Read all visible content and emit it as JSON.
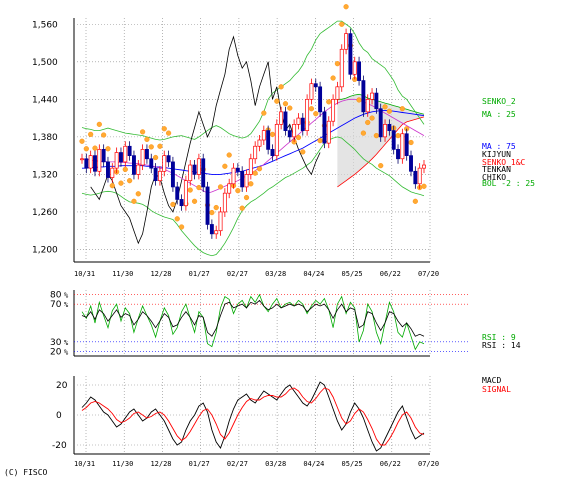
{
  "copyright": "(C) FISCO",
  "chart_data": [
    {
      "type": "candlestick",
      "panel": "price",
      "ylim": [
        1180,
        1570
      ],
      "yticks": [
        "1,200",
        "1,260",
        "1,320",
        "1,380",
        "1,440",
        "1,500",
        "1,560"
      ],
      "ytick_values": [
        1200,
        1260,
        1320,
        1380,
        1440,
        1500,
        1560
      ],
      "x_labels": [
        "10/31",
        "11/30",
        "12/28",
        "01/27",
        "02/27",
        "03/28",
        "04/24",
        "05/25",
        "06/22",
        "07/20"
      ],
      "legend": [
        {
          "text": "SENKO_2",
          "color": "#00aa00"
        },
        {
          "text": "MA : 25",
          "color": "#00aa00"
        },
        {
          "text": "MA : 75",
          "color": "#0000ff"
        },
        {
          "text": "KIJYUN",
          "color": "#000000"
        },
        {
          "text": "SENKO_1&C",
          "color": "#ff0000"
        },
        {
          "text": "TENKAN",
          "color": "#000000"
        },
        {
          "text": "CHIKO",
          "color": "#000000"
        },
        {
          "text": "BOL -2 : 25",
          "color": "#00aa00"
        }
      ],
      "close": [
        1345,
        1330,
        1350,
        1325,
        1360,
        1340,
        1315,
        1330,
        1355,
        1340,
        1365,
        1350,
        1320,
        1335,
        1360,
        1345,
        1330,
        1310,
        1325,
        1350,
        1340,
        1300,
        1280,
        1270,
        1310,
        1335,
        1320,
        1345,
        1300,
        1240,
        1225,
        1230,
        1260,
        1290,
        1305,
        1330,
        1325,
        1300,
        1320,
        1345,
        1365,
        1375,
        1390,
        1360,
        1350,
        1400,
        1420,
        1390,
        1380,
        1400,
        1410,
        1390,
        1440,
        1465,
        1460,
        1420,
        1370,
        1405,
        1440,
        1460,
        1520,
        1545,
        1480,
        1500,
        1470,
        1420,
        1440,
        1450,
        1425,
        1380,
        1400,
        1390,
        1360,
        1345,
        1385,
        1350,
        1325,
        1305,
        1330,
        1335
      ],
      "bollinger_upper": [
        1395,
        1393,
        1392,
        1390,
        1390,
        1392,
        1394,
        1392,
        1390,
        1388,
        1386,
        1385,
        1384,
        1383,
        1382,
        1380,
        1378,
        1376,
        1375,
        1376,
        1378,
        1380,
        1381,
        1382,
        1380,
        1378,
        1376,
        1380,
        1385,
        1390,
        1395,
        1398,
        1395,
        1390,
        1385,
        1382,
        1380,
        1378,
        1380,
        1385,
        1395,
        1405,
        1420,
        1440,
        1450,
        1455,
        1460,
        1465,
        1470,
        1478,
        1485,
        1495,
        1510,
        1520,
        1535,
        1545,
        1550,
        1555,
        1560,
        1565,
        1565,
        1560,
        1555,
        1545,
        1530,
        1520,
        1515,
        1505,
        1500,
        1495,
        1490,
        1480,
        1470,
        1455,
        1445,
        1440,
        1430,
        1420,
        1410,
        1400
      ],
      "bollinger_lower": [
        1290,
        1288,
        1287,
        1288,
        1290,
        1292,
        1293,
        1292,
        1290,
        1285,
        1280,
        1276,
        1275,
        1274,
        1272,
        1268,
        1262,
        1258,
        1255,
        1252,
        1250,
        1248,
        1240,
        1230,
        1222,
        1214,
        1206,
        1200,
        1195,
        1192,
        1190,
        1192,
        1200,
        1210,
        1222,
        1235,
        1250,
        1262,
        1270,
        1276,
        1280,
        1285,
        1290,
        1296,
        1300,
        1305,
        1310,
        1315,
        1318,
        1322,
        1326,
        1330,
        1335,
        1340,
        1350,
        1360,
        1370,
        1375,
        1378,
        1380,
        1378,
        1372,
        1366,
        1360,
        1352,
        1345,
        1340,
        1336,
        1330,
        1326,
        1322,
        1318,
        1312,
        1306,
        1300,
        1296,
        1292,
        1290,
        1288,
        1286
      ],
      "ma25": [
        1345,
        1344,
        1343,
        1342,
        1341,
        1341,
        1340,
        1340,
        1340,
        1339,
        1339,
        1338,
        1338,
        1337,
        1336,
        1335,
        1334,
        1332,
        1330,
        1328,
        1325,
        1322,
        1318,
        1314,
        1310,
        1306,
        1302,
        1298,
        1294,
        1290,
        1292,
        1295,
        1298,
        1301,
        1304,
        1307,
        1310,
        1314,
        1318,
        1322,
        1326,
        1331,
        1336,
        1342,
        1348,
        1354,
        1360,
        1366,
        1372,
        1378,
        1384,
        1390,
        1396,
        1402,
        1408,
        1414,
        1420,
        1425,
        1430,
        1434,
        1437,
        1439,
        1440,
        1440,
        1438,
        1436,
        1433,
        1430,
        1426,
        1422,
        1418,
        1414,
        1410,
        1406,
        1402,
        1398,
        1394,
        1390,
        1386,
        1382
      ],
      "ma75": [
        1330,
        1330,
        1331,
        1331,
        1332,
        1332,
        1333,
        1333,
        1333,
        1334,
        1334,
        1334,
        1334,
        1334,
        1334,
        1333,
        1333,
        1332,
        1332,
        1331,
        1330,
        1329,
        1328,
        1327,
        1326,
        1325,
        1324,
        1323,
        1322,
        1321,
        1320,
        1320,
        1320,
        1321,
        1322,
        1323,
        1324,
        1325,
        1327,
        1329,
        1331,
        1333,
        1335,
        1338,
        1341,
        1344,
        1347,
        1350,
        1353,
        1356,
        1359,
        1362,
        1366,
        1370,
        1374,
        1378,
        1382,
        1386,
        1390,
        1394,
        1398,
        1402,
        1406,
        1410,
        1413,
        1416,
        1418,
        1420,
        1421,
        1422,
        1422,
        1422,
        1421,
        1420,
        1419,
        1418,
        1417,
        1416,
        1415,
        1414
      ],
      "chiko": [
        1300,
        1290,
        1280,
        1300,
        1320,
        1310,
        1290,
        1270,
        1260,
        1250,
        1230,
        1210,
        1225,
        1260,
        1300,
        1320,
        1315,
        1290,
        1270,
        1260,
        1280,
        1310,
        1340,
        1370,
        1395,
        1420,
        1400,
        1380,
        1395,
        1430,
        1455,
        1480,
        1520,
        1540,
        1510,
        1490,
        1500,
        1470,
        1430,
        1460,
        1480,
        1500,
        1440,
        1460,
        1420,
        1390,
        1400,
        1380,
        1360,
        1345,
        1330,
        1320,
        1340,
        1355
      ],
      "kumo_top": [
        1440,
        1440,
        1442,
        1445,
        1447,
        1448,
        1446,
        1442,
        1440,
        1438,
        1436,
        1434,
        1432,
        1430,
        1428,
        1426,
        1424,
        1422,
        1420,
        1418,
        1416
      ],
      "kumo_bottom": [
        1300,
        1305,
        1310,
        1315,
        1320,
        1326,
        1332,
        1338,
        1345,
        1352,
        1360,
        1368,
        1376,
        1384,
        1392,
        1400,
        1404,
        1406,
        1408,
        1410,
        1412
      ]
    },
    {
      "type": "line",
      "panel": "rsi",
      "ylim": [
        15,
        85
      ],
      "yticks": [
        "80",
        "70",
        "30",
        "20"
      ],
      "ytick_values": [
        80,
        70,
        30,
        20
      ],
      "series": [
        {
          "name": "RSI : 9",
          "color": "#00aa00",
          "values": [
            62,
            55,
            68,
            50,
            72,
            58,
            45,
            63,
            70,
            52,
            66,
            60,
            40,
            55,
            68,
            58,
            48,
            35,
            52,
            66,
            58,
            38,
            45,
            62,
            70,
            55,
            40,
            62,
            56,
            28,
            25,
            40,
            66,
            78,
            75,
            60,
            70,
            74,
            66,
            78,
            72,
            80,
            68,
            62,
            70,
            76,
            66,
            70,
            72,
            68,
            74,
            70,
            60,
            68,
            74,
            70,
            76,
            64,
            45,
            70,
            78,
            60,
            72,
            66,
            30,
            42,
            70,
            62,
            40,
            28,
            50,
            72,
            62,
            40,
            35,
            50,
            36,
            22,
            30,
            28
          ]
        },
        {
          "name": "RSI : 14",
          "color": "#000000",
          "values": [
            58,
            56,
            62,
            54,
            64,
            60,
            52,
            58,
            64,
            56,
            60,
            58,
            48,
            54,
            62,
            58,
            52,
            45,
            52,
            60,
            56,
            46,
            48,
            56,
            62,
            56,
            48,
            58,
            56,
            40,
            36,
            44,
            58,
            70,
            72,
            66,
            68,
            70,
            66,
            72,
            70,
            74,
            68,
            64,
            66,
            70,
            66,
            68,
            70,
            68,
            70,
            68,
            62,
            66,
            70,
            68,
            70,
            64,
            55,
            64,
            70,
            62,
            66,
            64,
            45,
            48,
            62,
            60,
            50,
            42,
            50,
            62,
            60,
            52,
            46,
            50,
            44,
            36,
            38,
            36
          ]
        }
      ]
    },
    {
      "type": "line",
      "panel": "macd",
      "ylim": [
        -26,
        26
      ],
      "yticks": [
        "20",
        "0",
        "-20"
      ],
      "ytick_values": [
        20,
        0,
        -20
      ],
      "series": [
        {
          "name": "MACD",
          "color": "#000000",
          "values": [
            5,
            8,
            12,
            10,
            6,
            2,
            0,
            -4,
            -8,
            -6,
            -2,
            2,
            4,
            0,
            -4,
            -2,
            2,
            4,
            0,
            -4,
            -10,
            -16,
            -20,
            -18,
            -10,
            -4,
            0,
            6,
            8,
            2,
            -10,
            -18,
            -22,
            -14,
            -4,
            4,
            10,
            12,
            14,
            10,
            8,
            12,
            16,
            14,
            12,
            10,
            14,
            18,
            20,
            16,
            12,
            8,
            6,
            10,
            16,
            22,
            20,
            12,
            4,
            -4,
            -10,
            -6,
            2,
            8,
            4,
            -2,
            -10,
            -18,
            -24,
            -22,
            -16,
            -10,
            -4,
            2,
            6,
            -2,
            -10,
            -16,
            -14,
            -12
          ]
        },
        {
          "name": "SIGNAL",
          "color": "#ff0000",
          "values": [
            3,
            5,
            8,
            9,
            8,
            6,
            4,
            1,
            -3,
            -5,
            -4,
            -2,
            1,
            2,
            0,
            -2,
            -1,
            1,
            2,
            0,
            -4,
            -9,
            -14,
            -17,
            -15,
            -11,
            -6,
            -1,
            3,
            4,
            0,
            -6,
            -13,
            -16,
            -12,
            -6,
            0,
            5,
            9,
            11,
            10,
            10,
            12,
            13,
            13,
            12,
            12,
            14,
            17,
            18,
            16,
            12,
            9,
            8,
            11,
            15,
            18,
            17,
            12,
            5,
            -2,
            -6,
            -4,
            1,
            4,
            2,
            -3,
            -9,
            -16,
            -20,
            -20,
            -16,
            -11,
            -5,
            0,
            2,
            -2,
            -8,
            -12,
            -13
          ]
        }
      ]
    }
  ]
}
